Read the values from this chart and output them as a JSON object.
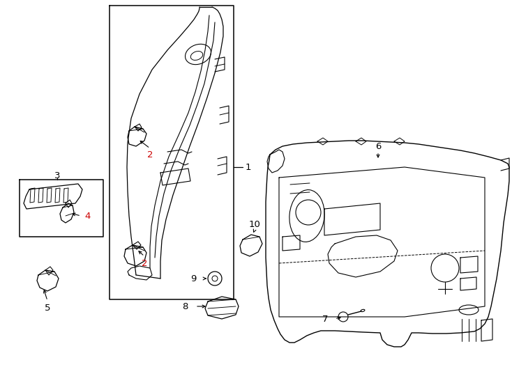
{
  "background_color": "#ffffff",
  "line_color": "#000000",
  "red_color": "#cc0000",
  "fig_width": 7.34,
  "fig_height": 5.4,
  "dpi": 100,
  "lw": 0.9
}
